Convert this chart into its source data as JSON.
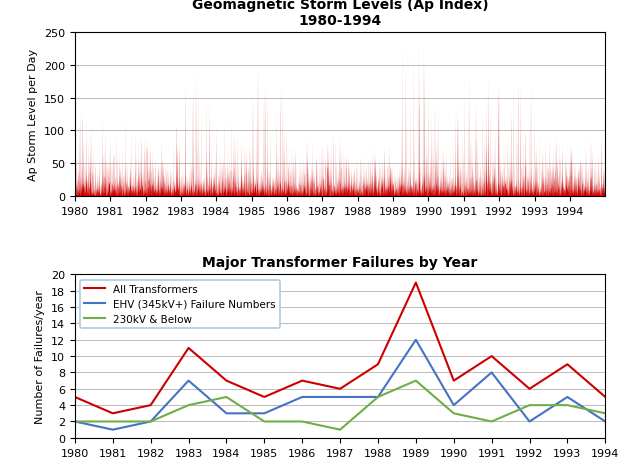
{
  "title1": "Geomagnetic Storm Levels (Ap Index)",
  "subtitle1": "1980-1994",
  "ylabel1": "Ap Storm Level per Day",
  "title2": "Major Transformer Failures by Year",
  "ylabel2": "Number of Failures/year",
  "years": [
    1980,
    1981,
    1982,
    1983,
    1984,
    1985,
    1986,
    1987,
    1988,
    1989,
    1990,
    1991,
    1992,
    1993,
    1994
  ],
  "all_transformers": [
    5,
    3,
    4,
    11,
    7,
    5,
    7,
    6,
    9,
    19,
    7,
    10,
    6,
    9,
    5
  ],
  "ehv_failures": [
    2,
    1,
    2,
    7,
    3,
    3,
    5,
    5,
    5,
    12,
    4,
    8,
    2,
    5,
    2
  ],
  "below_230kv": [
    2,
    2,
    2,
    4,
    5,
    2,
    2,
    1,
    5,
    7,
    3,
    2,
    4,
    4,
    3
  ],
  "line_color_all": "#cc0000",
  "line_color_ehv": "#4472c4",
  "line_color_230": "#70ad47",
  "ap_color": "#cc0000",
  "background_color": "#ffffff",
  "ylim1": [
    0,
    250
  ],
  "ylim2": [
    0,
    20
  ],
  "yticks1": [
    0,
    50,
    100,
    150,
    200,
    250
  ],
  "yticks2": [
    0,
    2,
    4,
    6,
    8,
    10,
    12,
    14,
    16,
    18,
    20
  ],
  "grid_color": "#bbbbbb",
  "random_seed": 42,
  "year_peak_max": [
    135,
    120,
    105,
    200,
    115,
    205,
    90,
    105,
    85,
    245,
    145,
    195,
    180,
    95,
    90
  ],
  "base_level": 15,
  "legend_all": "All Transformers",
  "legend_ehv": "EHV (345kV+) Failure Numbers",
  "legend_230": "230kV & Below"
}
